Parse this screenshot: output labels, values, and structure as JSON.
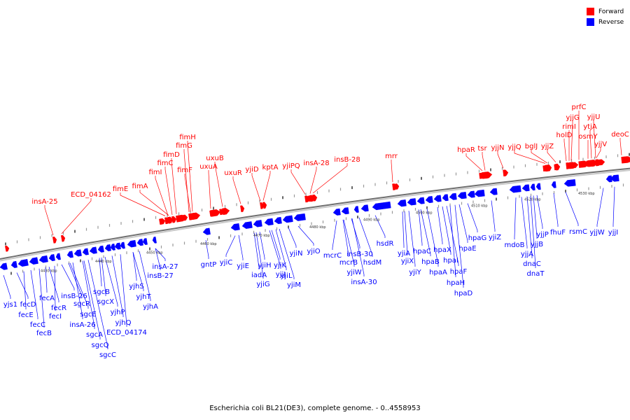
{
  "legend": {
    "forward_label": "Forward",
    "reverse_label": "Reverse",
    "forward_color": "#ff0000",
    "reverse_color": "#0000ff"
  },
  "caption": "Escherichia coli BL21(DE3), complete genome. - 0..4558953",
  "axis": {
    "ticks": [
      {
        "label": "4430 kbp"
      },
      {
        "label": "4440 kbp"
      },
      {
        "label": "4450 kbp"
      },
      {
        "label": "4460 kbp"
      },
      {
        "label": "4470 kbp"
      },
      {
        "label": "4480 kbp"
      },
      {
        "label": "4490 kbp"
      },
      {
        "label": "4500 kbp"
      },
      {
        "label": "4510 kbp"
      },
      {
        "label": "4520 kbp"
      },
      {
        "label": "4530 kbp"
      }
    ]
  },
  "forward_genes": [
    {
      "name": "insA-25"
    },
    {
      "name": "ECD_04162"
    },
    {
      "name": "fimE"
    },
    {
      "name": "fimA"
    },
    {
      "name": "fimI"
    },
    {
      "name": "fimC"
    },
    {
      "name": "fimD"
    },
    {
      "name": "fimF"
    },
    {
      "name": "fimG"
    },
    {
      "name": "fimH"
    },
    {
      "name": "uxuA"
    },
    {
      "name": "uxuB"
    },
    {
      "name": "uxuR"
    },
    {
      "name": "yjiD"
    },
    {
      "name": "kptA"
    },
    {
      "name": "yjiPQ"
    },
    {
      "name": "insA-28"
    },
    {
      "name": "insB-28"
    },
    {
      "name": "mrr"
    },
    {
      "name": "hpaR"
    },
    {
      "name": "tsr"
    },
    {
      "name": "yjjN"
    },
    {
      "name": "yjjQ"
    },
    {
      "name": "bglJ"
    },
    {
      "name": "yjjZ"
    },
    {
      "name": "holD"
    },
    {
      "name": "rimI"
    },
    {
      "name": "yjjG"
    },
    {
      "name": "prfC"
    },
    {
      "name": "osmY"
    },
    {
      "name": "ytjA"
    },
    {
      "name": "yjjU"
    },
    {
      "name": "yjjV"
    },
    {
      "name": "deoC"
    }
  ],
  "reverse_genes": [
    {
      "name": "yjs1"
    },
    {
      "name": "fecD"
    },
    {
      "name": "fecE"
    },
    {
      "name": "fecC"
    },
    {
      "name": "fecB"
    },
    {
      "name": "fecA"
    },
    {
      "name": "fecR"
    },
    {
      "name": "fecI"
    },
    {
      "name": "insB-26"
    },
    {
      "name": "insA-26"
    },
    {
      "name": "sgcR"
    },
    {
      "name": "sgcE"
    },
    {
      "name": "sgcA"
    },
    {
      "name": "sgcQ"
    },
    {
      "name": "sgcC"
    },
    {
      "name": "sgcB"
    },
    {
      "name": "sgcX"
    },
    {
      "name": "yjhP"
    },
    {
      "name": "yjhQ"
    },
    {
      "name": "ECD_04174"
    },
    {
      "name": "yjhS"
    },
    {
      "name": "yjhT"
    },
    {
      "name": "yjhA"
    },
    {
      "name": "insB-27"
    },
    {
      "name": "insA-27"
    },
    {
      "name": "gntP"
    },
    {
      "name": "yjiC"
    },
    {
      "name": "yjiE"
    },
    {
      "name": "iadA"
    },
    {
      "name": "yjiG"
    },
    {
      "name": "yjiH"
    },
    {
      "name": "yjiJ"
    },
    {
      "name": "yjiK"
    },
    {
      "name": "yjiL"
    },
    {
      "name": "yjiM"
    },
    {
      "name": "yjiN"
    },
    {
      "name": "yjiO"
    },
    {
      "name": "mcrC"
    },
    {
      "name": "mcrB"
    },
    {
      "name": "yjiW"
    },
    {
      "name": "insB-30"
    },
    {
      "name": "insA-30"
    },
    {
      "name": "hsdM"
    },
    {
      "name": "hsdR"
    },
    {
      "name": "yjiA"
    },
    {
      "name": "yjiX"
    },
    {
      "name": "yjiY"
    },
    {
      "name": "hpaC"
    },
    {
      "name": "hpaB"
    },
    {
      "name": "hpaA"
    },
    {
      "name": "hpaX"
    },
    {
      "name": "hpaI"
    },
    {
      "name": "hpaF"
    },
    {
      "name": "hpaH"
    },
    {
      "name": "hpaD"
    },
    {
      "name": "hpaE"
    },
    {
      "name": "hpaG"
    },
    {
      "name": "yjiZ"
    },
    {
      "name": "mdoB"
    },
    {
      "name": "yjjA"
    },
    {
      "name": "dnaC"
    },
    {
      "name": "dnaT"
    },
    {
      "name": "yjjB"
    },
    {
      "name": "yjjP"
    },
    {
      "name": "fhuF"
    },
    {
      "name": "rsmC"
    },
    {
      "name": "yjjW"
    },
    {
      "name": "yjjI"
    }
  ]
}
